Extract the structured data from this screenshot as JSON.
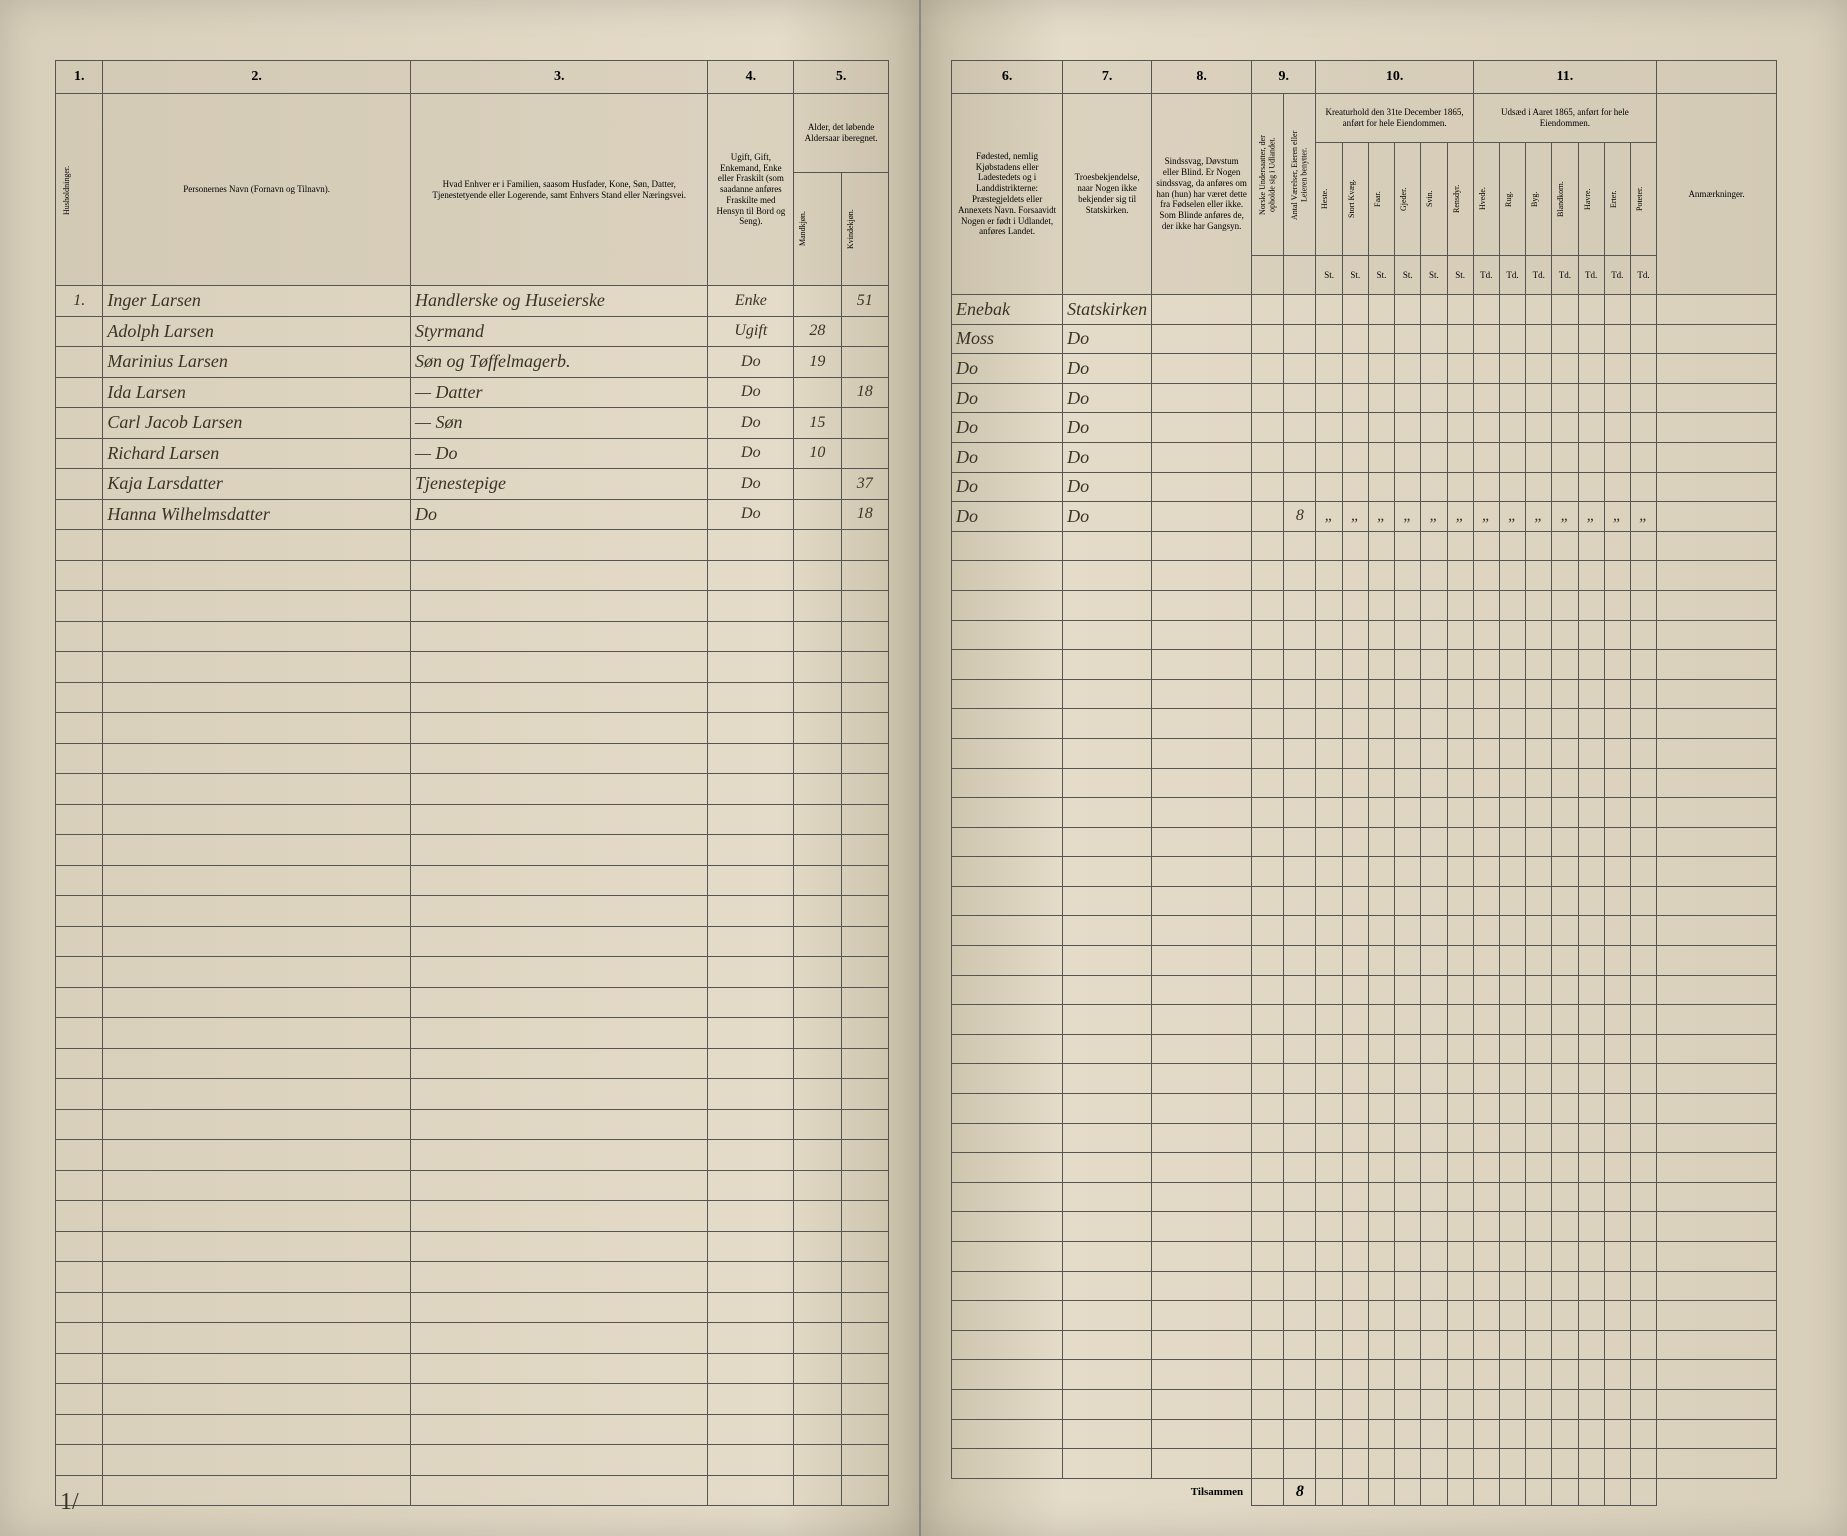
{
  "left": {
    "columns": [
      "1.",
      "2.",
      "3.",
      "4.",
      "5."
    ],
    "headers": {
      "col1": "Husholdninger.",
      "col2": "Personernes Navn (Fornavn og Tilnavn).",
      "col3": "Hvad Enhver er i Familien, saasom Husfader, Kone, Søn, Datter, Tjenestetyende eller Logerende, samt Enhvers Stand eller Næringsvei.",
      "col4": "Ugift, Gift, Enkemand, Enke eller Fraskilt (som saadanne anføres Fraskilte med Hensyn til Bord og Seng).",
      "col5": "Alder, det løbende Aldersaar iberegnet.",
      "col5a": "Mandkjøn.",
      "col5b": "Kvindekjøn."
    },
    "rows": [
      {
        "n": "1.",
        "name": "Inger Larsen",
        "rel": "Handlerske og Huseierske",
        "stat": "Enke",
        "m": "",
        "f": "51"
      },
      {
        "n": "",
        "name": "Adolph Larsen",
        "rel": "Styrmand",
        "stat": "Ugift",
        "m": "28",
        "f": ""
      },
      {
        "n": "",
        "name": "Marinius Larsen",
        "rel": "Søn og Tøffelmagerb.",
        "stat": "Do",
        "m": "19",
        "f": ""
      },
      {
        "n": "",
        "name": "Ida Larsen",
        "rel": "— Datter",
        "stat": "Do",
        "m": "",
        "f": "18"
      },
      {
        "n": "",
        "name": "Carl Jacob Larsen",
        "rel": "— Søn",
        "stat": "Do",
        "m": "15",
        "f": ""
      },
      {
        "n": "",
        "name": "Richard Larsen",
        "rel": "— Do",
        "stat": "Do",
        "m": "10",
        "f": ""
      },
      {
        "n": "",
        "name": "Kaja Larsdatter",
        "rel": "Tjenestepige",
        "stat": "Do",
        "m": "",
        "f": "37"
      },
      {
        "n": "",
        "name": "Hanna Wilhelmsdatter",
        "rel": "Do",
        "stat": "Do",
        "m": "",
        "f": "18"
      }
    ],
    "corner": "1/"
  },
  "right": {
    "columns": [
      "6.",
      "7.",
      "8.",
      "9.",
      "10.",
      "11.",
      ""
    ],
    "headers": {
      "col6": "Fødested, nemlig Kjøbstadens eller Ladestedets og i Landdistrikterne: Præstegjeldets eller Annexets Navn. Forsaavidt Nogen er født i Udlandet, anføres Landet.",
      "col7": "Troesbekjendelse, naar Nogen ikke bekjender sig til Statskirken.",
      "col8": "Sindssvag, Døvstum eller Blind. Er Nogen sindssvag, da anføres om han (hun) har været dette fra Fødselen eller ikke. Som Blinde anføres de, der ikke har Gangsyn.",
      "col9a": "Norske Undersaatter, der opholde sig i Udlandet.",
      "col9b": "Antal Værelser, Eieren eller Leieren benytter.",
      "col10": "Kreaturhold den 31te December 1865, anført for hele Eiendommen.",
      "col10_sub": [
        "Heste.",
        "Stort Kvæg.",
        "Faar.",
        "Gjeder.",
        "Svin.",
        "Rensdyr."
      ],
      "col11": "Udsæd i Aaret 1865, anført for hele Eiendommen.",
      "col11_sub": [
        "Hvede.",
        "Rug.",
        "Byg.",
        "Blandkorn.",
        "Havre.",
        "Erter.",
        "Poteter."
      ],
      "col12": "Anmærkninger.",
      "unit_st": "St.",
      "unit_td": "Td."
    },
    "rows": [
      {
        "p": "Enebak",
        "t": "Statskirken",
        "c9": ""
      },
      {
        "p": "Moss",
        "t": "Do",
        "c9": ""
      },
      {
        "p": "Do",
        "t": "Do",
        "c9": ""
      },
      {
        "p": "Do",
        "t": "Do",
        "c9": ""
      },
      {
        "p": "Do",
        "t": "Do",
        "c9": ""
      },
      {
        "p": "Do",
        "t": "Do",
        "c9": ""
      },
      {
        "p": "Do",
        "t": "Do",
        "c9": ""
      },
      {
        "p": "Do",
        "t": "Do",
        "c9": "8"
      }
    ],
    "footer_label": "Tilsammen",
    "footer_val": "8"
  },
  "colors": {
    "ink": "#3a3428",
    "rule": "#555555",
    "paper_light": "#e4dbc8",
    "paper_dark": "#d4cab6",
    "background": "#1a1815"
  },
  "empty_rows": 32,
  "dash": "„"
}
